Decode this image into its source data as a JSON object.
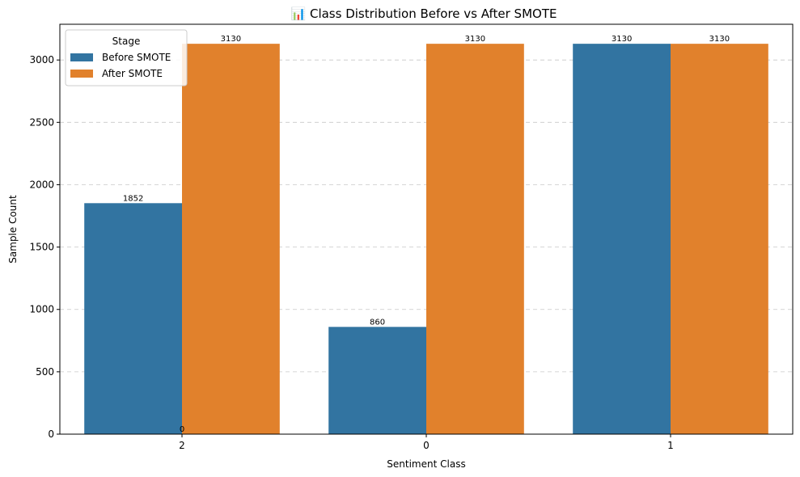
{
  "chart_data": {
    "type": "bar",
    "title": "📊 Class Distribution Before vs After SMOTE",
    "xlabel": "Sentiment Class",
    "ylabel": "Sample Count",
    "categories": [
      "2",
      "0",
      "1"
    ],
    "series": [
      {
        "name": "Before SMOTE",
        "values": [
          1852,
          860,
          3130
        ],
        "color": "#3274a1"
      },
      {
        "name": "After SMOTE",
        "values": [
          3130,
          3130,
          3130
        ],
        "color": "#e1812c"
      }
    ],
    "bar_labels": [
      [
        "1852",
        "860",
        "3130"
      ],
      [
        "3130",
        "3130",
        "3130"
      ]
    ],
    "extra_label": "0",
    "ylim": [
      0,
      3286.5
    ],
    "yticks": [
      0,
      500,
      1000,
      1500,
      2000,
      2500,
      3000
    ],
    "grid": "y-dashed",
    "legend": {
      "title": "Stage",
      "placement": "top-left"
    }
  }
}
